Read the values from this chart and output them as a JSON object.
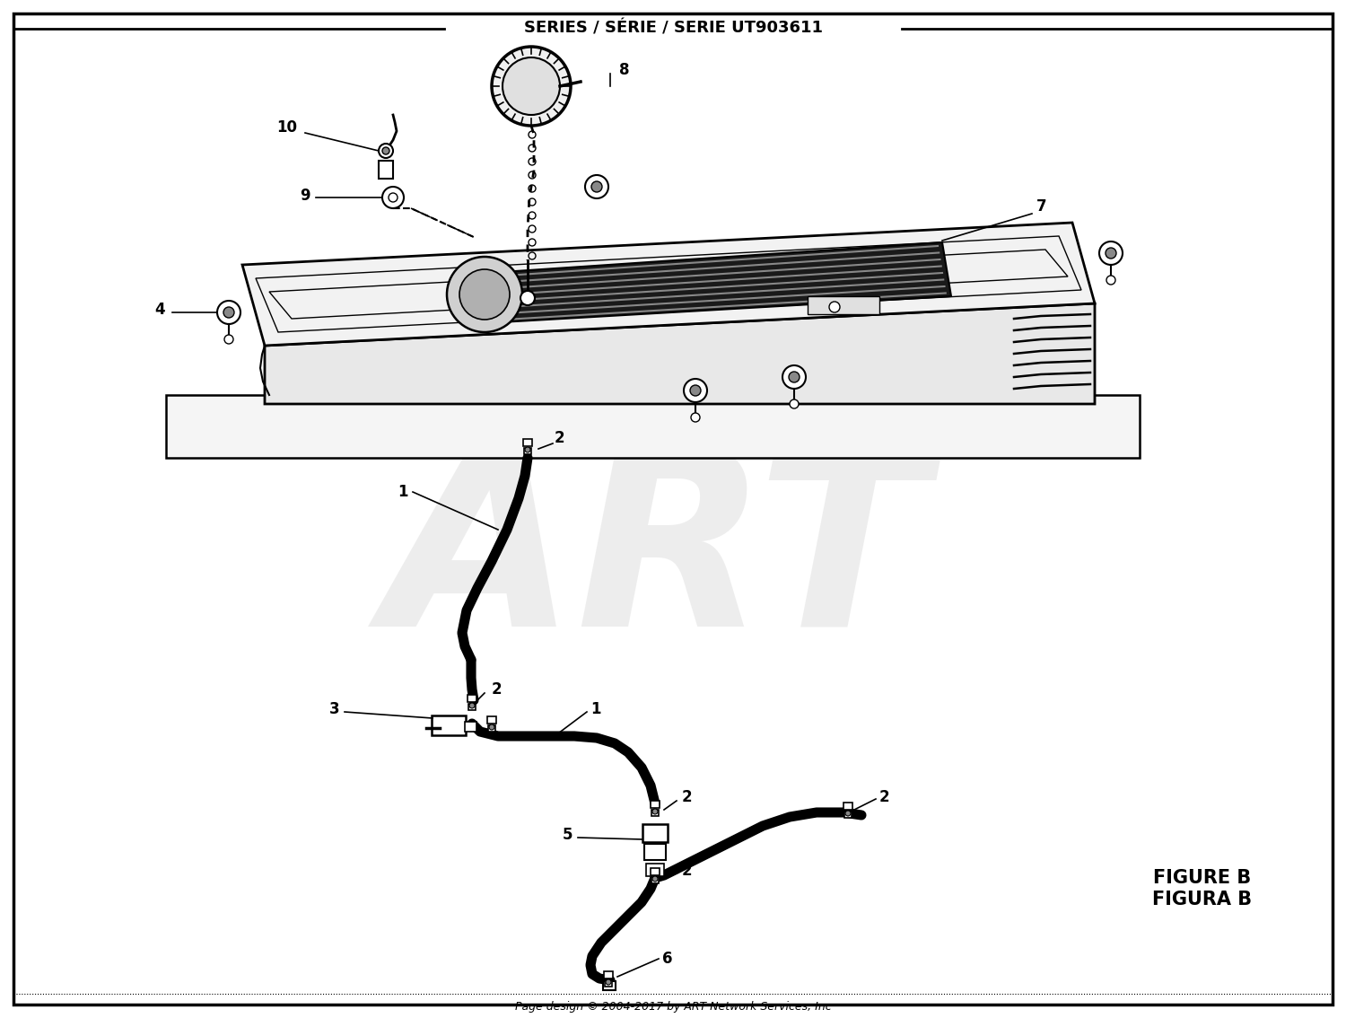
{
  "title": "SERIES / SÉRIE / SERIE UT903611",
  "figure_label_1": "FIGURE B",
  "figure_label_2": "FIGURA B",
  "footer": "Page design © 2004-2017 by ART Network Services, Inc",
  "watermark": "ART",
  "bg_color": "#ffffff",
  "border_color": "#000000",
  "title_fontsize": 13,
  "label_fontsize": 12,
  "figure_label_fontsize": 15,
  "footer_fontsize": 9
}
